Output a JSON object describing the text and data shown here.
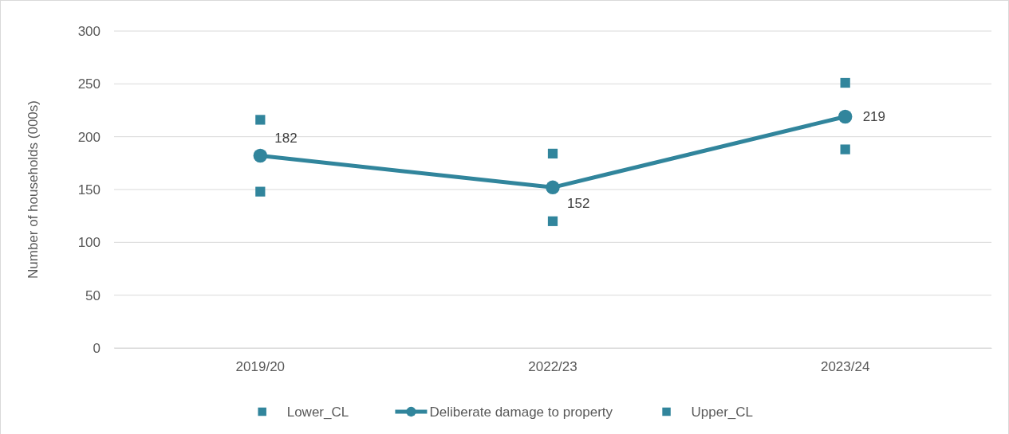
{
  "chart_data": {
    "type": "line",
    "ylabel": "Number of households (000s)",
    "categories": [
      "2019/20",
      "2022/23",
      "2023/24"
    ],
    "ylim": [
      0,
      300
    ],
    "yticks": [
      0,
      50,
      100,
      150,
      200,
      250,
      300
    ],
    "grid": "y",
    "legend": "bottom",
    "series": [
      {
        "name": "Lower_CL",
        "type": "scatter",
        "marker": "square",
        "color": "#31859c",
        "values": [
          148,
          120,
          188
        ]
      },
      {
        "name": "Deliberate damage to property",
        "marker": "circle",
        "color": "#31859c",
        "values": [
          182,
          152,
          219
        ],
        "value_labels": [
          "182",
          "152",
          "219"
        ]
      },
      {
        "name": "Upper_CL",
        "type": "scatter",
        "marker": "square",
        "color": "#31859c",
        "values": [
          216,
          184,
          251
        ]
      }
    ]
  }
}
